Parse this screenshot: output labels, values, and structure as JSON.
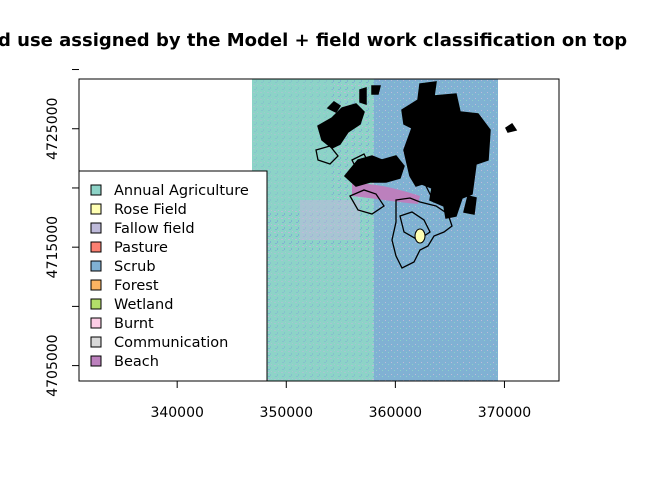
{
  "title": "d use assigned by the Model + field work classification on top",
  "map": {
    "x_ticks": [
      {
        "value": 340000,
        "label": "340000"
      },
      {
        "value": 350000,
        "label": "350000"
      },
      {
        "value": 360000,
        "label": "360000"
      },
      {
        "value": 370000,
        "label": "370000"
      }
    ],
    "y_ticks": [
      {
        "value": 4705000,
        "label": "4705000"
      },
      {
        "value": 4710000,
        "label": ""
      },
      {
        "value": 4715000,
        "label": "4715000"
      },
      {
        "value": 4720000,
        "label": ""
      },
      {
        "value": 4725000,
        "label": "4725000"
      },
      {
        "value": 4730000,
        "label": ""
      }
    ],
    "x_range": [
      331000,
      375000
    ],
    "y_range": [
      4703700,
      4729200
    ]
  },
  "legend": {
    "items": [
      {
        "label": "Annual Agriculture",
        "color": "#8DD3C7"
      },
      {
        "label": "Rose Field",
        "color": "#FFFFB3"
      },
      {
        "label": "Fallow field",
        "color": "#BEBADA"
      },
      {
        "label": "Pasture",
        "color": "#FB8072"
      },
      {
        "label": "Scrub",
        "color": "#80B1D3"
      },
      {
        "label": "Forest",
        "color": "#FDB462"
      },
      {
        "label": "Wetland",
        "color": "#B3DE69"
      },
      {
        "label": "Burnt",
        "color": "#FCCDE5"
      },
      {
        "label": "Communication",
        "color": "#D9D9D9"
      },
      {
        "label": "Beach",
        "color": "#BC80BD"
      }
    ]
  }
}
